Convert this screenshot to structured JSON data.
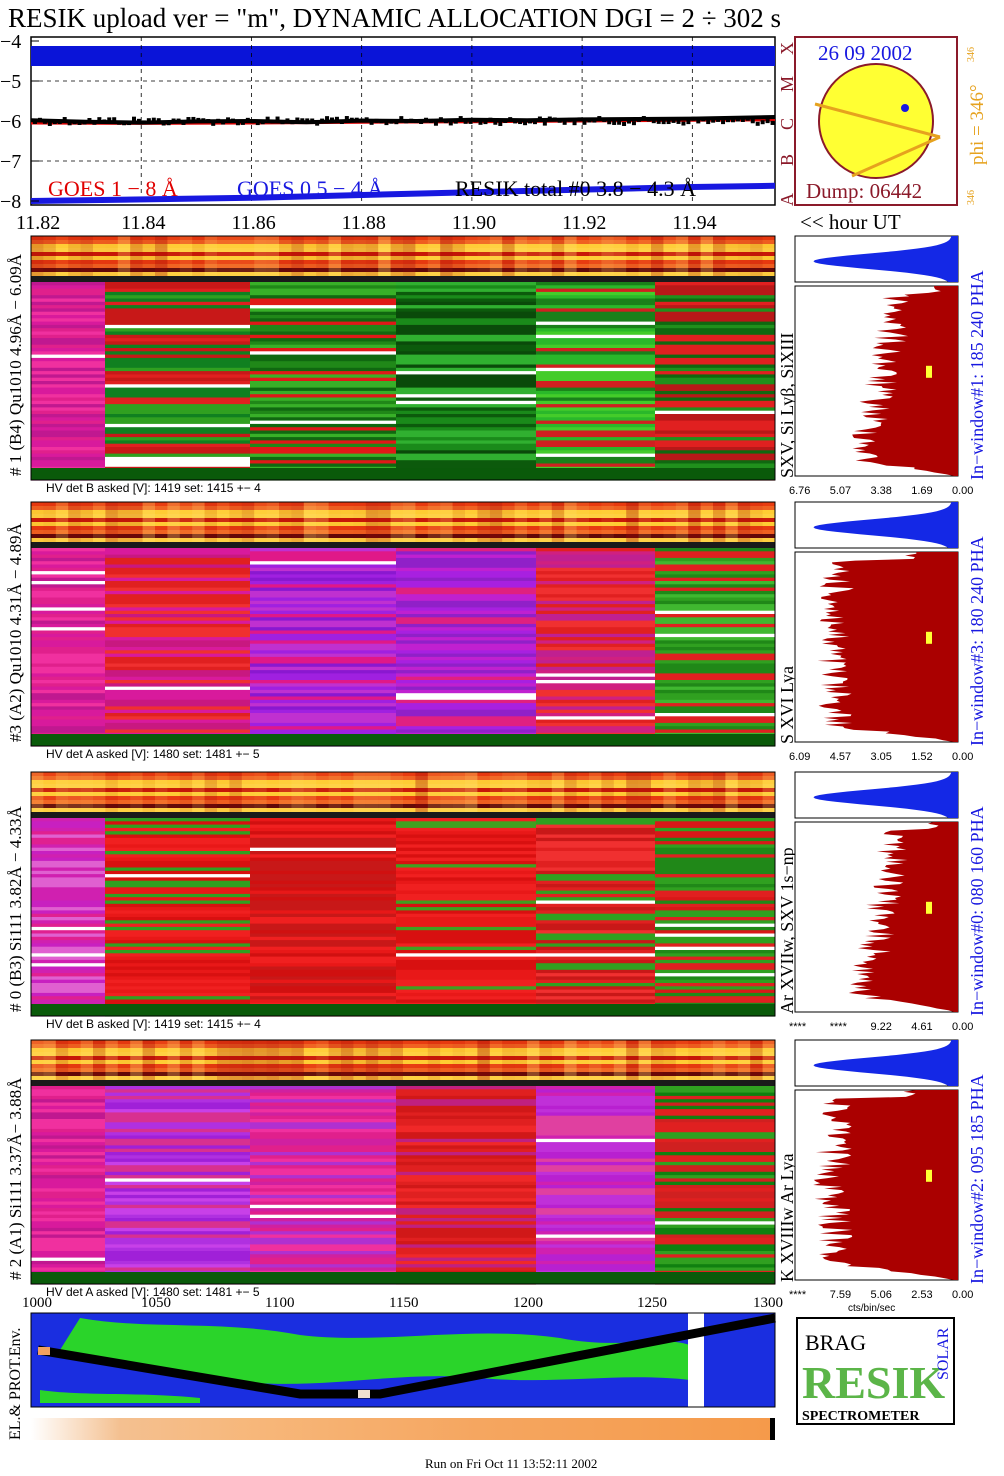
{
  "title": "RESIK upload ver = \"m\", DYNAMIC ALLOCATION  DGI =   2 ÷ 302 s",
  "footer": "Run on Fri Oct 11 13:52:11 2002",
  "colors": {
    "title": "#8b1a2a",
    "goes_1_8": "#e00000",
    "goes_05_4": "#1818e0",
    "resik_total": "#000000",
    "hist_fill": "#aa0000",
    "hist_top": "#1428e6",
    "sun": "#ffff33",
    "orange": "#e6a21e"
  },
  "top_chart": {
    "y_ticks": [
      "−4",
      "−5",
      "−6",
      "−7",
      "−8"
    ],
    "x_ticks": [
      "11.82",
      "11.84",
      "11.86",
      "11.88",
      "11.90",
      "11.92",
      "11.94"
    ],
    "x_unit_label": "<< hour UT",
    "class_letters": [
      "X",
      "M",
      "C",
      "B",
      "A"
    ],
    "legend": [
      "GOES 1 − 8 Å",
      "GOES 0.5 − 4 Å",
      "RESIK total #0  3.8 − 4.3 Å"
    ]
  },
  "sun_panel": {
    "date": "26 09 2002",
    "dump": "Dump: 06442",
    "phi": "phi = 346°",
    "phi_small_top": "346",
    "phi_small_bottom": "346"
  },
  "panels": [
    {
      "left_label": "# 1 (B4) Qu1010 4.96Å − 6.09Å",
      "line_label": "SXV, Si Lyβ, SiXIII",
      "hv": "HV det B asked [V]:  1419 set:  1415  +−    4",
      "window": "In−window#1:  185 240 PHA",
      "hist_ticks": [
        "6.76",
        "5.07",
        "3.38",
        "1.69",
        "0.00"
      ]
    },
    {
      "left_label": "#3 (A2) Qu1010  4.31Å − 4.89Å",
      "line_label": "S XVI Lya",
      "hv": "HV det A asked [V]:  1480 set:  1481  +−    5",
      "window": "In−window#3:  180 240 PHA",
      "hist_ticks": [
        "6.09",
        "4.57",
        "3.05",
        "1.52",
        "0.00"
      ]
    },
    {
      "left_label": "# 0 (B3) Si111  3.82Å − 4.33Å",
      "line_label": "Ar XVIIw,  SXV 1s−np",
      "hv": "HV det B asked [V]:  1419 set:  1415  +−    4",
      "window": "In−window#0:  080 160 PHA",
      "hist_ticks": [
        "****",
        "****",
        "9.22",
        "4.61",
        "0.00"
      ]
    },
    {
      "left_label": "# 2 (A1) Si111  3.37Å− 3.88Å",
      "line_label": "K XVIIIw  Ar Lya",
      "hv": "HV det A asked [V]:  1480 set:  1481  +−    5",
      "window": "In−window#2:  095 185 PHA",
      "hist_ticks": [
        "****",
        "7.59",
        "5.06",
        "2.53",
        "0.00"
      ],
      "hist_unit": "cts/bin/sec"
    }
  ],
  "env": {
    "label": "EL.& PROT.Env.",
    "x_ticks": [
      "1000",
      "1050",
      "1100",
      "1150",
      "1200",
      "1250",
      "1300"
    ]
  },
  "logo": {
    "line1": "BRAG",
    "big": "RESIK",
    "side": "SOLAR",
    "bottom": "SPECTROMETER"
  },
  "chart_data": {
    "type": "line",
    "title": "RESIK upload ver = \"m\", DYNAMIC ALLOCATION  DGI =   2 ÷ 302 s",
    "xlabel": "<< hour UT",
    "ylabel": "",
    "xlim": [
      11.82,
      11.955
    ],
    "ylim": [
      -8.1,
      -3.9
    ],
    "series": [
      {
        "name": "GOES 1 − 8 Å",
        "color": "#e00000",
        "x": [
          11.82,
          11.84,
          11.86,
          11.88,
          11.9,
          11.92,
          11.94,
          11.955
        ],
        "y": [
          -6.05,
          -6.06,
          -6.05,
          -6.03,
          -6.02,
          -6.0,
          -5.98,
          -5.97
        ]
      },
      {
        "name": "GOES 0.5 − 4 Å",
        "color": "#1818e0",
        "x": [
          11.82,
          11.86,
          11.9,
          11.94,
          11.955
        ],
        "y": [
          -8.0,
          -7.92,
          -7.78,
          -7.65,
          -7.62
        ]
      },
      {
        "name": "RESIK total #0  3.8 − 4.3 Å",
        "color": "#000000",
        "x": [
          11.82,
          11.83,
          11.84,
          11.85,
          11.86,
          11.87,
          11.88,
          11.89,
          11.9,
          11.91,
          11.92,
          11.93,
          11.94,
          11.955
        ],
        "y": [
          -5.98,
          -6.02,
          -6.04,
          -6.01,
          -6.0,
          -6.03,
          -5.99,
          -6.0,
          -5.97,
          -5.98,
          -5.96,
          -5.95,
          -5.94,
          -5.9
        ]
      }
    ]
  }
}
